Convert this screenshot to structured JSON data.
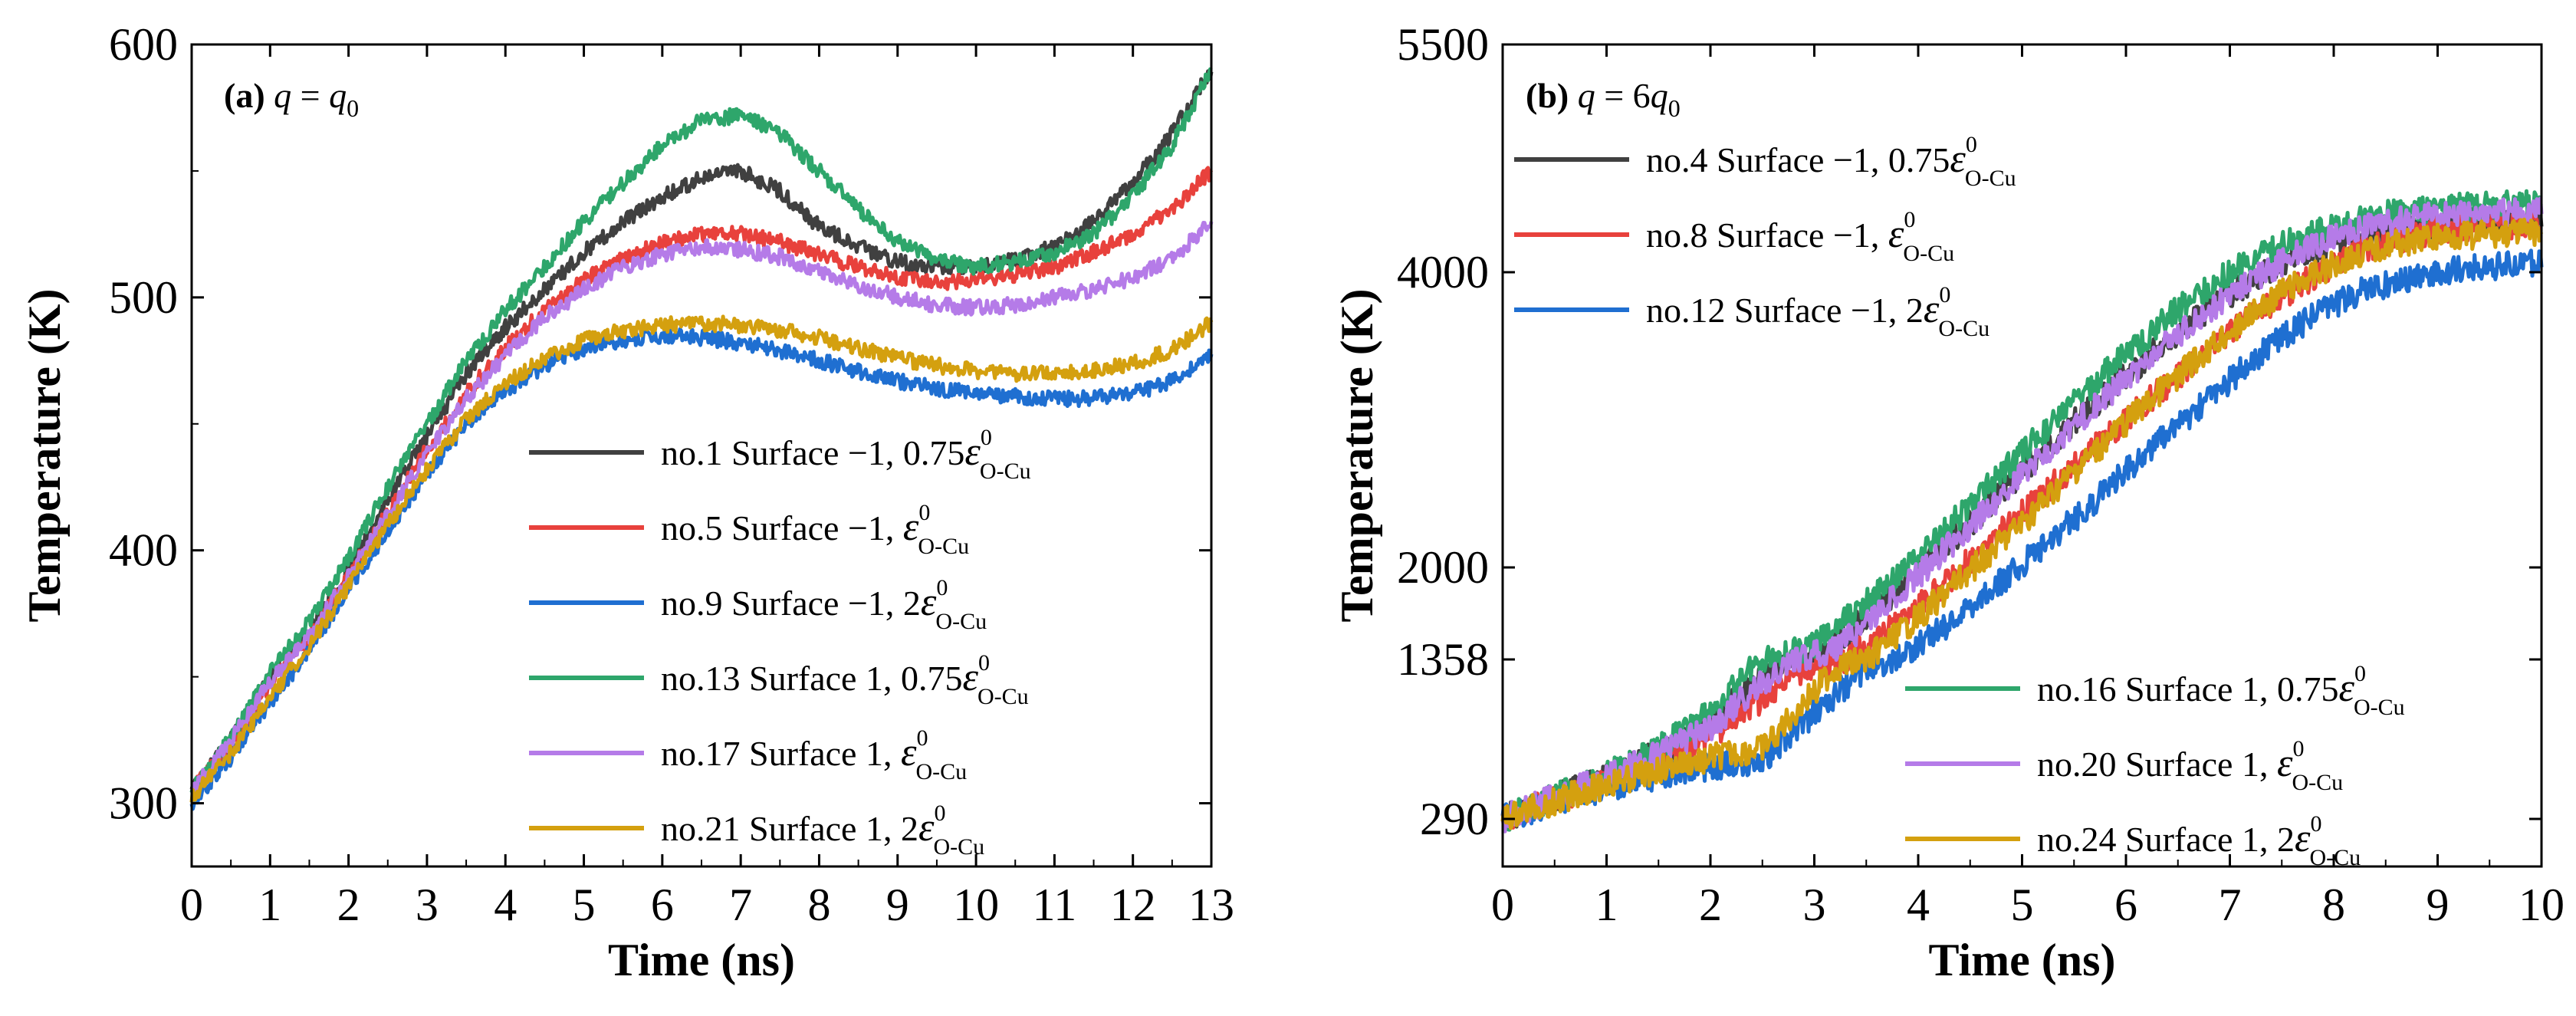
{
  "chart_data": [
    {
      "type": "line",
      "panel_label": "(a)",
      "title": "q = q0",
      "title_parts": {
        "lhs": "q",
        "eq": " = ",
        "rhs": "q",
        "rhs_sub": "0"
      },
      "xlabel": "Time (ns)",
      "ylabel": "Temperature (K)",
      "xlim": [
        0,
        13
      ],
      "ylim": [
        275,
        600
      ],
      "xticks": [
        0,
        1,
        2,
        3,
        4,
        5,
        6,
        7,
        8,
        9,
        10,
        11,
        12,
        13
      ],
      "yticks": [
        300,
        400,
        500,
        600
      ],
      "legend_position": "lower-right",
      "series": [
        {
          "name": "no.1",
          "surface": "Surface −1,",
          "coef": "0.75",
          "eps": "ε",
          "sup": "0",
          "sub": "O-Cu",
          "color": "#404040",
          "x": [
            0,
            0.5,
            1,
            1.5,
            2,
            2.5,
            3,
            3.5,
            4,
            4.5,
            5,
            5.5,
            6,
            6.5,
            7,
            7.5,
            8,
            8.5,
            9,
            9.5,
            10,
            10.5,
            11,
            11.5,
            12,
            12.5,
            13
          ],
          "y": [
            305,
            325,
            350,
            368,
            392,
            420,
            445,
            470,
            488,
            503,
            518,
            530,
            540,
            547,
            550,
            542,
            528,
            520,
            514,
            512,
            512,
            515,
            520,
            530,
            545,
            565,
            590
          ]
        },
        {
          "name": "no.5",
          "surface": "Surface −1,",
          "coef": "",
          "eps": "ε",
          "sup": "0",
          "sub": "O-Cu",
          "color": "#e8413c",
          "x": [
            0,
            0.5,
            1,
            1.5,
            2,
            2.5,
            3,
            3.5,
            4,
            4.5,
            5,
            5.5,
            6,
            6.5,
            7,
            7.5,
            8,
            8.5,
            9,
            9.5,
            10,
            10.5,
            11,
            11.5,
            12,
            12.5,
            13
          ],
          "y": [
            305,
            323,
            347,
            365,
            390,
            415,
            440,
            462,
            480,
            495,
            507,
            515,
            522,
            525,
            525,
            522,
            517,
            512,
            508,
            506,
            507,
            509,
            512,
            518,
            525,
            535,
            550
          ]
        },
        {
          "name": "no.9",
          "surface": "Surface −1,",
          "coef": "2",
          "eps": "ε",
          "sup": "0",
          "sub": "O-Cu",
          "color": "#1f6fd1",
          "x": [
            0,
            0.5,
            1,
            1.5,
            2,
            2.5,
            3,
            3.5,
            4,
            4.5,
            5,
            5.5,
            6,
            6.5,
            7,
            7.5,
            8,
            8.5,
            9,
            9.5,
            10,
            10.5,
            11,
            11.5,
            12,
            12.5,
            13
          ],
          "y": [
            300,
            318,
            340,
            360,
            385,
            408,
            430,
            450,
            463,
            473,
            480,
            483,
            485,
            484,
            482,
            479,
            475,
            471,
            467,
            464,
            462,
            461,
            460,
            460,
            462,
            467,
            478
          ]
        },
        {
          "name": "no.13",
          "surface": "Surface 1,",
          "coef": "0.75",
          "eps": "ε",
          "sup": "0",
          "sub": "O-Cu",
          "color": "#2ea66b",
          "x": [
            0,
            0.5,
            1,
            1.5,
            2,
            2.5,
            3,
            3.5,
            4,
            4.5,
            5,
            5.5,
            6,
            6.5,
            7,
            7.5,
            8,
            8.5,
            9,
            9.5,
            10,
            10.5,
            11,
            11.5,
            12,
            12.5,
            13
          ],
          "y": [
            305,
            326,
            352,
            372,
            397,
            425,
            450,
            475,
            495,
            512,
            530,
            545,
            560,
            570,
            572,
            565,
            550,
            535,
            522,
            515,
            512,
            514,
            518,
            525,
            540,
            560,
            590
          ]
        },
        {
          "name": "no.17",
          "surface": "Surface 1,",
          "coef": "",
          "eps": "ε",
          "sup": "0",
          "sub": "O-Cu",
          "color": "#b57be8",
          "x": [
            0,
            0.5,
            1,
            1.5,
            2,
            2.5,
            3,
            3.5,
            4,
            4.5,
            5,
            5.5,
            6,
            6.5,
            7,
            7.5,
            8,
            8.5,
            9,
            9.5,
            10,
            10.5,
            11,
            11.5,
            12,
            12.5,
            13
          ],
          "y": [
            305,
            325,
            348,
            366,
            390,
            414,
            438,
            460,
            477,
            492,
            503,
            512,
            517,
            520,
            519,
            516,
            510,
            505,
            500,
            497,
            496,
            497,
            500,
            503,
            508,
            515,
            530
          ]
        },
        {
          "name": "no.21",
          "surface": "Surface 1,",
          "coef": "2",
          "eps": "ε",
          "sup": "0",
          "sub": "O-Cu",
          "color": "#d4a00f",
          "x": [
            0,
            0.5,
            1,
            1.5,
            2,
            2.5,
            3,
            3.5,
            4,
            4.5,
            5,
            5.5,
            6,
            6.5,
            7,
            7.5,
            8,
            8.5,
            9,
            9.5,
            10,
            10.5,
            11,
            11.5,
            12,
            12.5,
            13
          ],
          "y": [
            302,
            320,
            342,
            362,
            386,
            410,
            432,
            452,
            466,
            476,
            483,
            487,
            489,
            490,
            489,
            487,
            484,
            480,
            476,
            473,
            471,
            470,
            470,
            471,
            474,
            479,
            490
          ]
        }
      ]
    },
    {
      "type": "line",
      "panel_label": "(b)",
      "title": "q = 6q0",
      "title_parts": {
        "lhs": "q",
        "eq": " = 6",
        "rhs": "q",
        "rhs_sub": "0"
      },
      "xlabel": "Time (ns)",
      "ylabel": "Temperature (K)",
      "xlim": [
        0,
        10
      ],
      "ylim": [
        0,
        5500
      ],
      "xticks": [
        0,
        1,
        2,
        3,
        4,
        5,
        6,
        7,
        8,
        9,
        10
      ],
      "yticks": [
        290,
        1358,
        2000,
        4000,
        5500
      ],
      "legend_position": "top-left and bottom-right",
      "series": [
        {
          "name": "no.4",
          "surface": "Surface −1,",
          "coef": "0.75",
          "eps": "ε",
          "sup": "0",
          "sub": "O-Cu",
          "color": "#404040",
          "legend_group": "top",
          "x": [
            0,
            0.5,
            1,
            1.5,
            2,
            2.3,
            2.6,
            3,
            3.5,
            4,
            4.5,
            5,
            5.5,
            6,
            6.5,
            7,
            7.5,
            8,
            8.5,
            9,
            9.5,
            10
          ],
          "y": [
            290,
            430,
            570,
            730,
            930,
            1130,
            1300,
            1358,
            1650,
            1980,
            2300,
            2650,
            2980,
            3300,
            3600,
            3850,
            4050,
            4200,
            4280,
            4320,
            4330,
            4340
          ]
        },
        {
          "name": "no.8",
          "surface": "Surface −1,",
          "coef": "",
          "eps": "ε",
          "sup": "0",
          "sub": "O-Cu",
          "color": "#e8413c",
          "legend_group": "top",
          "x": [
            0,
            0.5,
            1,
            1.5,
            2,
            2.5,
            2.9,
            3.3,
            3.8,
            4.3,
            4.8,
            5.3,
            5.8,
            6.3,
            6.8,
            7.3,
            7.8,
            8.3,
            8.8,
            9.3,
            10
          ],
          "y": [
            290,
            420,
            550,
            690,
            850,
            1080,
            1300,
            1358,
            1600,
            1920,
            2240,
            2560,
            2880,
            3180,
            3480,
            3750,
            3970,
            4150,
            4250,
            4300,
            4320
          ]
        },
        {
          "name": "no.12",
          "surface": "Surface −1,",
          "coef": "2",
          "eps": "ε",
          "sup": "0",
          "sub": "O-Cu",
          "color": "#1f6fd1",
          "legend_group": "top",
          "x": [
            0,
            0.5,
            1,
            1.5,
            2,
            2.5,
            3,
            3.5,
            3.8,
            4.3,
            4.8,
            5.3,
            5.8,
            6.3,
            6.8,
            7.3,
            7.8,
            8.3,
            8.8,
            9.3,
            10
          ],
          "y": [
            290,
            400,
            500,
            580,
            640,
            680,
            1000,
            1300,
            1358,
            1600,
            1900,
            2200,
            2520,
            2840,
            3150,
            3450,
            3700,
            3880,
            3980,
            4030,
            4060
          ]
        },
        {
          "name": "no.16",
          "surface": "Surface 1,",
          "coef": "0.75",
          "eps": "ε",
          "sup": "0",
          "sub": "O-Cu",
          "color": "#2ea66b",
          "legend_group": "bottom",
          "x": [
            0,
            0.5,
            1,
            1.5,
            2,
            2.3,
            2.5,
            3,
            3.5,
            4,
            4.5,
            5,
            5.5,
            6,
            6.5,
            7,
            7.5,
            8,
            8.5,
            9,
            9.5,
            10
          ],
          "y": [
            290,
            440,
            590,
            760,
            1000,
            1250,
            1358,
            1450,
            1750,
            2080,
            2420,
            2780,
            3120,
            3450,
            3750,
            4000,
            4180,
            4300,
            4380,
            4420,
            4440,
            4460
          ]
        },
        {
          "name": "no.20",
          "surface": "Surface 1,",
          "coef": "",
          "eps": "ε",
          "sup": "0",
          "sub": "O-Cu",
          "color": "#b57be8",
          "legend_group": "bottom",
          "x": [
            0,
            0.5,
            1,
            1.5,
            2,
            2.4,
            2.8,
            3.2,
            3.7,
            4.2,
            4.7,
            5.2,
            5.7,
            6.2,
            6.7,
            7.2,
            7.7,
            8.2,
            8.7,
            9.2,
            10
          ],
          "y": [
            290,
            430,
            570,
            720,
            900,
            1150,
            1358,
            1420,
            1750,
            2080,
            2420,
            2760,
            3090,
            3400,
            3700,
            3950,
            4140,
            4280,
            4350,
            4390,
            4400
          ]
        },
        {
          "name": "no.24",
          "surface": "Surface 1,",
          "coef": "2",
          "eps": "ε",
          "sup": "0",
          "sub": "O-Cu",
          "color": "#d4a00f",
          "legend_group": "bottom",
          "x": [
            0,
            0.5,
            1,
            1.5,
            2,
            2.5,
            2.8,
            3.2,
            3.5,
            4,
            4.5,
            5,
            5.5,
            6,
            6.5,
            7,
            7.5,
            8,
            8.5,
            9,
            9.5,
            10
          ],
          "y": [
            290,
            410,
            520,
            620,
            700,
            760,
            1000,
            1300,
            1358,
            1650,
            1980,
            2300,
            2650,
            2980,
            3300,
            3600,
            3860,
            4050,
            4180,
            4230,
            4250,
            4260
          ]
        }
      ]
    }
  ]
}
